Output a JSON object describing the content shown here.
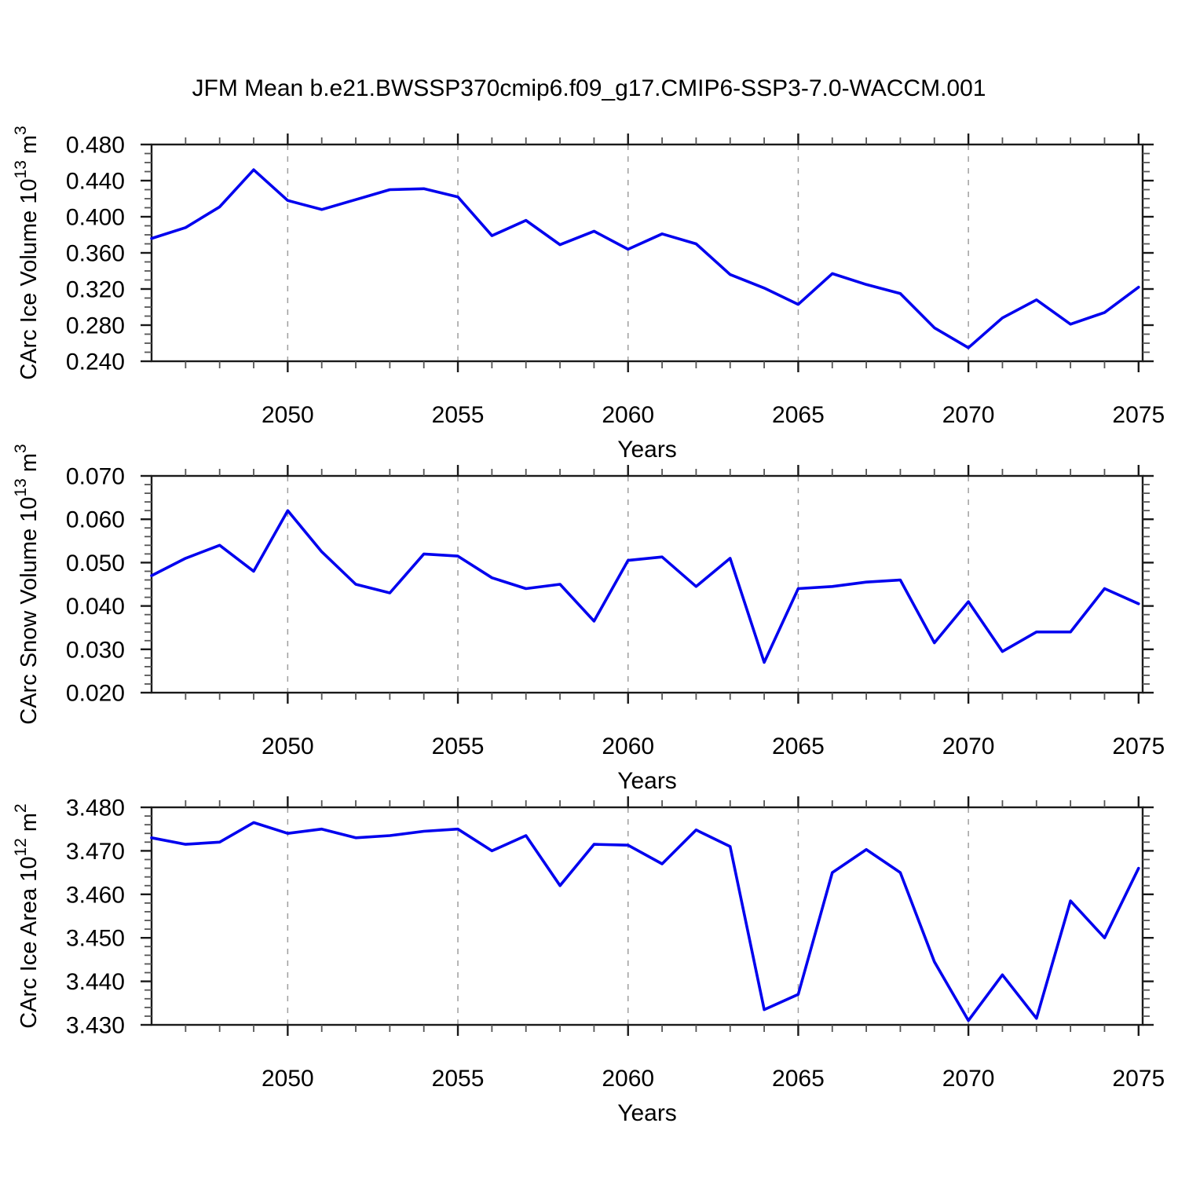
{
  "title": "JFM Mean b.e21.BWSSP370cmip6.f09_g17.CMIP6-SSP3-7.0-WACCM.001",
  "colors": {
    "line": "#0000EE",
    "axis": "#1a1a1a",
    "grid": "#9e9e9e",
    "minor_tick": "#555555"
  },
  "x_axis": {
    "label": "Years",
    "min": 2046,
    "max": 2075.12,
    "major_tick_values": [
      2050,
      2055,
      2060,
      2065,
      2070,
      2075
    ],
    "major_tick_labels": [
      "2050",
      "2055",
      "2060",
      "2065",
      "2070",
      "2075"
    ],
    "gridline_values": [
      2050,
      2055,
      2060,
      2065,
      2070
    ],
    "minor_tick_step": 1
  },
  "years": [
    2046,
    2047,
    2048,
    2049,
    2050,
    2051,
    2052,
    2053,
    2054,
    2055,
    2056,
    2057,
    2058,
    2059,
    2060,
    2061,
    2062,
    2063,
    2064,
    2065,
    2066,
    2067,
    2068,
    2069,
    2070,
    2071,
    2072,
    2073,
    2074,
    2075
  ],
  "chart_data": [
    {
      "type": "line",
      "name": "ice-volume",
      "ylabel_parts": [
        {
          "text": "CArc Ice Volume 10"
        },
        {
          "sup": "13"
        },
        {
          "text": " m"
        },
        {
          "sup": "3"
        }
      ],
      "ylim": [
        0.24,
        0.48
      ],
      "y_major_values": [
        0.24,
        0.28,
        0.32,
        0.36,
        0.4,
        0.44,
        0.48
      ],
      "y_major_labels": [
        "0.240",
        "0.280",
        "0.320",
        "0.360",
        "0.400",
        "0.440",
        "0.480"
      ],
      "y_minor_step": 0.01,
      "xlabel": "Years",
      "values": [
        0.376,
        0.388,
        0.411,
        0.452,
        0.418,
        0.408,
        0.419,
        0.43,
        0.431,
        0.422,
        0.379,
        0.396,
        0.369,
        0.384,
        0.364,
        0.381,
        0.37,
        0.336,
        0.321,
        0.303,
        0.337,
        0.325,
        0.315,
        0.277,
        0.255,
        0.288,
        0.308,
        0.281,
        0.294,
        0.322
      ]
    },
    {
      "type": "line",
      "name": "snow-volume",
      "ylabel_parts": [
        {
          "text": "CArc Snow Volume 10"
        },
        {
          "sup": "13"
        },
        {
          "text": " m"
        },
        {
          "sup": "3"
        }
      ],
      "ylim": [
        0.02,
        0.07
      ],
      "y_major_values": [
        0.02,
        0.03,
        0.04,
        0.05,
        0.06,
        0.07
      ],
      "y_major_labels": [
        "0.020",
        "0.030",
        "0.040",
        "0.050",
        "0.060",
        "0.070"
      ],
      "y_minor_step": 0.002,
      "xlabel": "Years",
      "values": [
        0.047,
        0.051,
        0.054,
        0.048,
        0.062,
        0.0525,
        0.045,
        0.043,
        0.052,
        0.0515,
        0.0465,
        0.044,
        0.045,
        0.0365,
        0.0505,
        0.0513,
        0.0445,
        0.051,
        0.027,
        0.044,
        0.0445,
        0.0455,
        0.046,
        0.0315,
        0.041,
        0.0295,
        0.034,
        0.034,
        0.044,
        0.0405
      ]
    },
    {
      "type": "line",
      "name": "ice-area",
      "ylabel_parts": [
        {
          "text": "CArc Ice Area 10"
        },
        {
          "sup": "12"
        },
        {
          "text": " m"
        },
        {
          "sup": "2"
        }
      ],
      "ylim": [
        3.43,
        3.48
      ],
      "y_major_values": [
        3.43,
        3.44,
        3.45,
        3.46,
        3.47,
        3.48
      ],
      "y_major_labels": [
        "3.430",
        "3.440",
        "3.450",
        "3.460",
        "3.470",
        "3.480"
      ],
      "y_minor_step": 0.002,
      "xlabel": "Years",
      "values": [
        3.473,
        3.4715,
        3.472,
        3.4765,
        3.474,
        3.475,
        3.473,
        3.4735,
        3.4745,
        3.475,
        3.47,
        3.4735,
        3.462,
        3.4715,
        3.4713,
        3.467,
        3.4748,
        3.471,
        3.4335,
        3.437,
        3.465,
        3.4703,
        3.465,
        3.4445,
        3.431,
        3.4415,
        3.4315,
        3.4585,
        3.45,
        3.466
      ]
    }
  ]
}
